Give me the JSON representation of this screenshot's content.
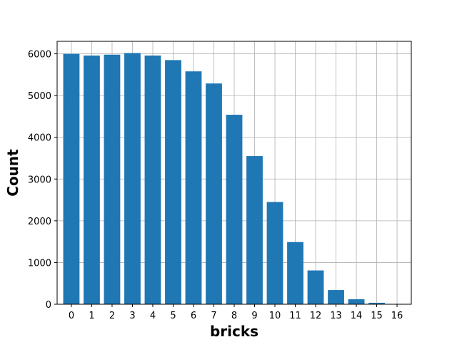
{
  "chart_data": {
    "type": "bar",
    "title": "",
    "xlabel": "bricks",
    "ylabel": "Count",
    "categories": [
      "0",
      "1",
      "2",
      "3",
      "4",
      "5",
      "6",
      "7",
      "8",
      "9",
      "10",
      "11",
      "12",
      "13",
      "14",
      "15",
      "16"
    ],
    "values": [
      6000,
      5960,
      5980,
      6020,
      5960,
      5850,
      5580,
      5290,
      4540,
      3550,
      2450,
      1490,
      810,
      340,
      120,
      35,
      5
    ],
    "ylim": [
      0,
      6300
    ],
    "yticks": [
      0,
      1000,
      2000,
      3000,
      4000,
      5000,
      6000
    ],
    "grid": true,
    "bar_color": "#1f77b4"
  }
}
